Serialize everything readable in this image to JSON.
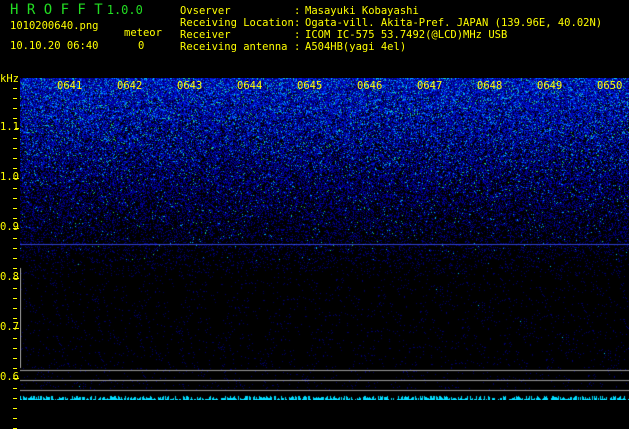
{
  "app": {
    "name": "H R O F F T",
    "version": "1.0.0"
  },
  "file": {
    "name": "1010200640.png",
    "datetime": "10.10.20 06:40"
  },
  "meteor": {
    "label": "meteor",
    "count": "0"
  },
  "info": [
    {
      "label": "Ovserver",
      "value": "Masayuki Kobayashi"
    },
    {
      "label": "Receiving Location",
      "value": "Ogata-vill. Akita-Pref. JAPAN (139.96E, 40.02N)"
    },
    {
      "label": "Receiver",
      "value": "ICOM IC-575 53.7492(@LCD)MHz USB"
    },
    {
      "label": "Receiving antenna",
      "value": "A504HB(yagi 4el)"
    }
  ],
  "axis": {
    "unit": "kHz",
    "y_ticks": [
      "1.1",
      "1.0",
      "0.9",
      "0.8",
      "0.7",
      "0.6"
    ],
    "time_ticks": [
      "0641",
      "0642",
      "0643",
      "0644",
      "0645",
      "0646",
      "0647",
      "0648",
      "0649",
      "0650"
    ]
  },
  "colors": {
    "text": "#ffff00",
    "title": "#22dd22",
    "signal": "#00ffff",
    "noise": "#0000ff"
  }
}
